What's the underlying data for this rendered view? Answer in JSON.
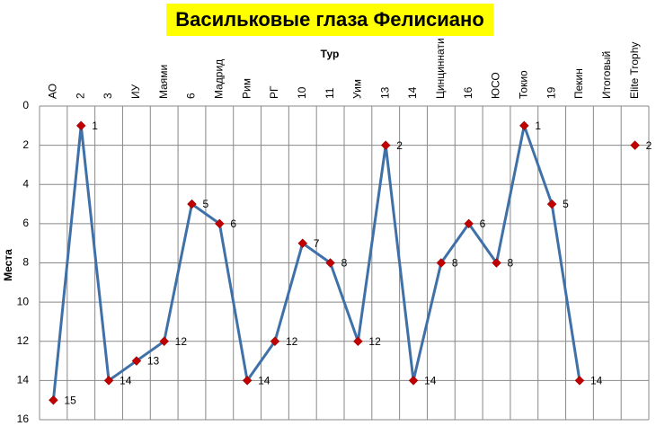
{
  "chart_data": {
    "type": "line",
    "title": "Васильковые глаза Фелисиано",
    "x_label": "Тур",
    "y_label": "Места",
    "categories": [
      "АО",
      "2",
      "3",
      "ИУ",
      "Маями",
      "6",
      "Мадрид",
      "Рим",
      "РГ",
      "10",
      "11",
      "Уим",
      "13",
      "14",
      "Цинциннати",
      "16",
      "ЮСО",
      "Токио",
      "19",
      "Пекин",
      "Итоговый",
      "Elite Trophy"
    ],
    "values": [
      15,
      1,
      14,
      13,
      12,
      5,
      6,
      14,
      12,
      7,
      8,
      12,
      2,
      14,
      8,
      6,
      8,
      1,
      5,
      14,
      null,
      2
    ],
    "color": "#3f71a8",
    "marker_color": "#c00000",
    "ylim": [
      0,
      16
    ],
    "yticks": [
      0,
      2,
      4,
      6,
      8,
      10,
      12,
      14,
      16
    ],
    "y_reversed": true,
    "grid": true
  }
}
